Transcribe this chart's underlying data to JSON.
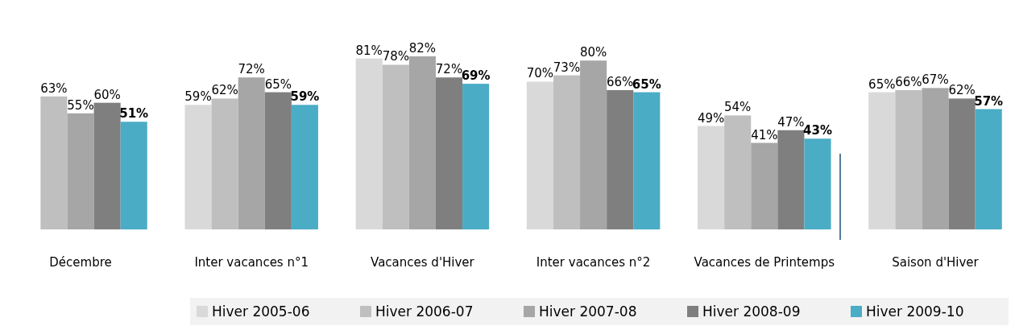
{
  "chart_data": {
    "type": "bar",
    "categories": [
      "Décembre",
      "Inter vacances n°1",
      "Vacances d'Hiver",
      "Inter vacances n°2",
      "Vacances de Printemps",
      "Saison d'Hiver"
    ],
    "series": [
      {
        "name": "Hiver 2005-06",
        "color": "#d9d9d9",
        "values": [
          null,
          59,
          81,
          70,
          49,
          65
        ],
        "value_labels": [
          null,
          "59%",
          "81%",
          "70%",
          "49%",
          "65%"
        ]
      },
      {
        "name": "Hiver 2006-07",
        "color": "#bfbfbf",
        "values": [
          63,
          62,
          78,
          73,
          54,
          66
        ],
        "value_labels": [
          "63%",
          "62%",
          "78%",
          "73%",
          "54%",
          "66%"
        ]
      },
      {
        "name": "Hiver 2007-08",
        "color": "#a6a6a6",
        "values": [
          55,
          72,
          82,
          80,
          41,
          67
        ],
        "value_labels": [
          "55%",
          "72%",
          "82%",
          "80%",
          "41%",
          "67%"
        ]
      },
      {
        "name": "Hiver 2008-09",
        "color": "#7f7f7f",
        "values": [
          60,
          65,
          72,
          66,
          47,
          62
        ],
        "value_labels": [
          "60%",
          "65%",
          "72%",
          "66%",
          "47%",
          "62%"
        ]
      },
      {
        "name": "Hiver 2009-10",
        "color": "#4bacc6",
        "values": [
          51,
          59,
          69,
          65,
          43,
          57
        ],
        "value_labels": [
          "51%",
          "59%",
          "69%",
          "65%",
          "43%",
          "57%"
        ]
      }
    ],
    "legend": "bottom right"
  }
}
